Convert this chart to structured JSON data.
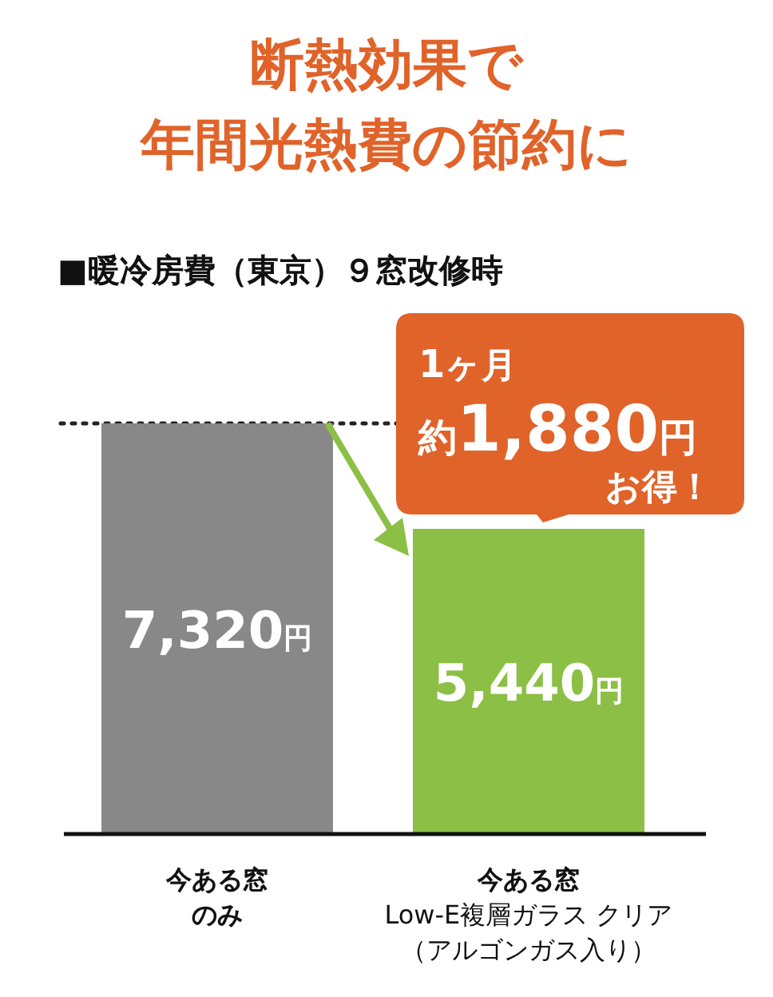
{
  "chart_data": {
    "type": "bar",
    "title": "断熱効果で年間光熱費の節約に",
    "subtitle": "■暖冷房費（東京）９窓改修時",
    "categories": [
      "今ある窓のみ",
      "**今ある窓**Low-E複層ガラス クリア（アルゴンガス入り）"
    ],
    "values": [
      7320,
      5440
    ],
    "colors": [
      "#888888",
      "#8cbf45"
    ],
    "value_labels": [
      "7,320円",
      "5,440円"
    ],
    "ref_lines": [
      {
        "axis": "y",
        "value": 7320,
        "line_style": "dotted",
        "color": "#222222"
      }
    ],
    "annotations": [
      "1ヶ月",
      "約1,880円",
      "お得！"
    ]
  }
}
